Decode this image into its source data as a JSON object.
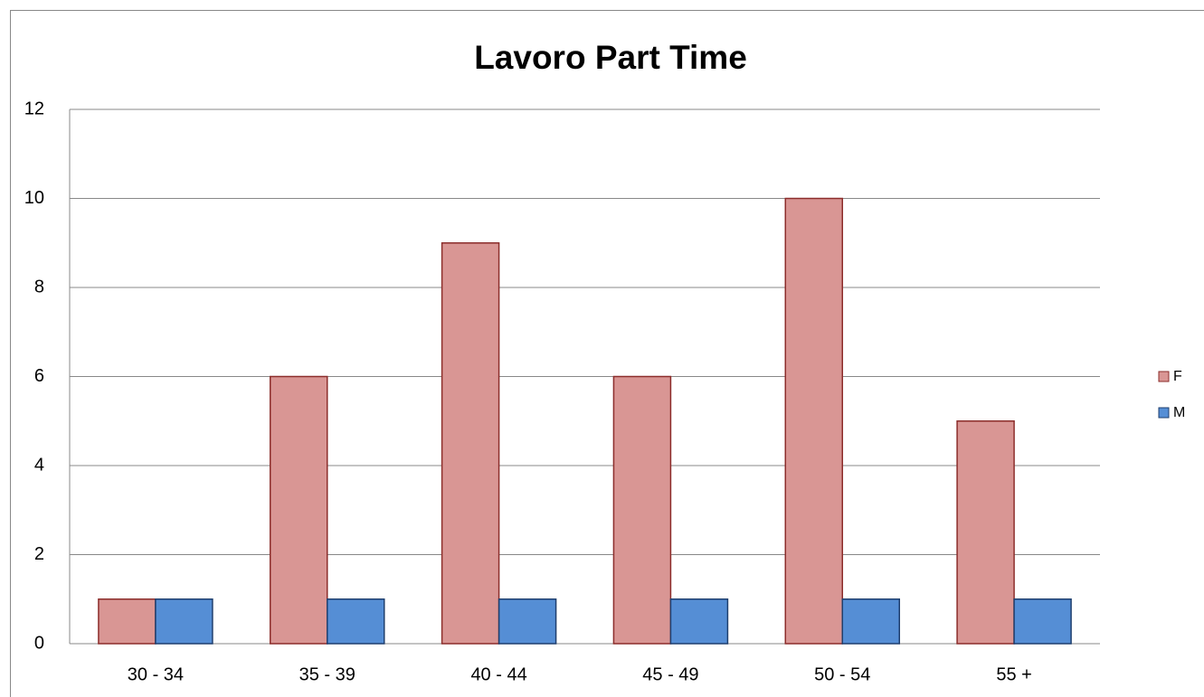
{
  "chart_data": {
    "type": "bar",
    "title": "Lavoro Part Time",
    "categories": [
      "30 - 34",
      "35 - 39",
      "40 - 44",
      "45 - 49",
      "50 - 54",
      "55 +"
    ],
    "series": [
      {
        "name": "F",
        "color": "#d99694",
        "edgecolor": "#8c2d2b",
        "values": [
          1,
          6,
          9,
          6,
          10,
          5
        ]
      },
      {
        "name": "M",
        "color": "#558ed5",
        "edgecolor": "#1f3f6e",
        "values": [
          1,
          1,
          1,
          1,
          1,
          1
        ]
      }
    ],
    "ylim": [
      0,
      12
    ],
    "yticks": [
      0,
      2,
      4,
      6,
      8,
      10,
      12
    ],
    "grid": true,
    "legend": "right"
  }
}
